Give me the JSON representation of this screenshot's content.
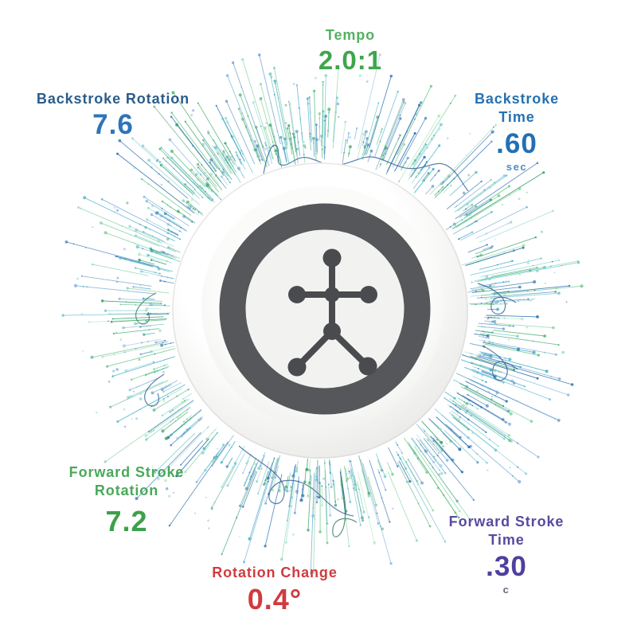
{
  "page": {
    "background": "#ffffff"
  },
  "metrics": {
    "tempo": {
      "label": "Tempo",
      "value": "2.0:1",
      "label_color": "#54b161",
      "value_color": "#3ea64b"
    },
    "backstroke_rotation": {
      "label": "Backstroke Rotation",
      "value": "7.6",
      "label_color": "#2a5c8a",
      "value_color": "#2e74ba"
    },
    "backstroke_time": {
      "label": "Backstroke Time",
      "value": ".60",
      "unit": "sec",
      "label_color": "#2571b2",
      "value_color": "#2270b5",
      "unit_color": "#4e8bc0"
    },
    "forward_stroke_rotation": {
      "label": "Forward Stroke Rotation",
      "value": "7.2",
      "label_color": "#4aa85a",
      "value_color": "#3da04b"
    },
    "forward_stroke_time": {
      "label": "Forward Stroke Time",
      "value": ".30",
      "unit": "c",
      "label_color": "#584a9e",
      "value_color": "#4f3f9e",
      "unit_color": "#6b6880"
    },
    "rotation_change": {
      "label": "Rotation Change",
      "value": "0.4°",
      "label_color": "#cf3b3f",
      "value_color": "#d03b3f"
    }
  },
  "device": {
    "name": "stroke sensor puck",
    "body_color": "#f5f5f3",
    "ring_color": "#55575a",
    "logo_color": "#494b4e",
    "logo": "dot-figure-logo"
  },
  "burst": {
    "seed": 42,
    "rays": 560,
    "hero_rays": 14,
    "scatter_dots": 150,
    "palette": [
      "#8fd8a8",
      "#5cbf7d",
      "#38a169",
      "#79cfd1",
      "#4fb3c9",
      "#7fb2dd",
      "#4a86c2",
      "#2c6fae"
    ],
    "squiggle_colors": [
      "#2d5e93",
      "#33745f"
    ]
  }
}
